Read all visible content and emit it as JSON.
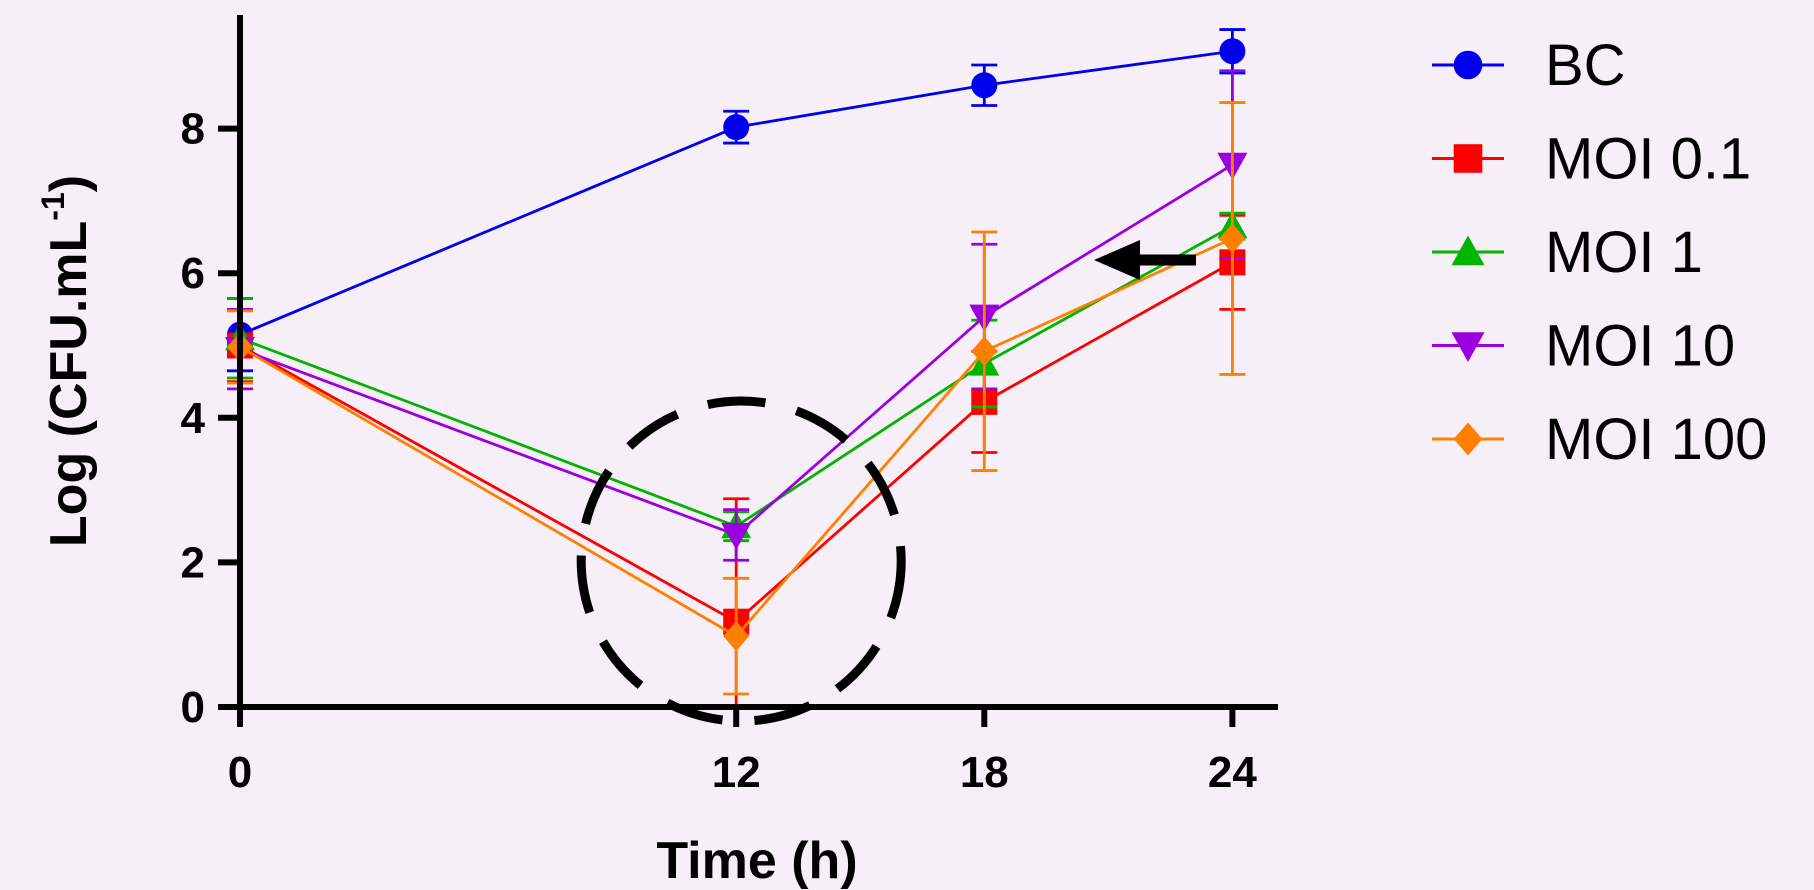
{
  "chart_data": {
    "type": "line",
    "xlabel": "Time (h)",
    "ylabel": {
      "main": "Log (CFU.mL",
      "superscript": "-1",
      "close": ")"
    },
    "x_ticks": [
      "0",
      "12",
      "18",
      "24"
    ],
    "y_ticks": [
      "0",
      "2",
      "4",
      "6",
      "8"
    ],
    "xlim": [
      0,
      30
    ],
    "ylim": [
      0,
      9.8
    ],
    "grid": false,
    "legend_position": "right",
    "x": [
      0,
      12,
      18,
      24
    ],
    "series": [
      {
        "name": "BC",
        "color": "#0000ee",
        "marker": "circle",
        "values": [
          5.15,
          8.02,
          8.6,
          9.07
        ],
        "errors": [
          0.5,
          0.22,
          0.28,
          0.3
        ]
      },
      {
        "name": "MOI 0.1",
        "color": "#ff0000",
        "marker": "square",
        "values": [
          5.0,
          1.18,
          4.22,
          6.15
        ],
        "errors": [
          0.5,
          1.7,
          0.7,
          0.65
        ]
      },
      {
        "name": "MOI 1",
        "color": "#00b400",
        "marker": "triangle-up",
        "values": [
          5.1,
          2.5,
          4.75,
          6.65
        ],
        "errors": [
          0.55,
          0.2,
          0.6,
          0.18
        ]
      },
      {
        "name": "MOI 10",
        "color": "#9900dd",
        "marker": "triangle-down",
        "values": [
          4.95,
          2.38,
          5.4,
          7.5
        ],
        "errors": [
          0.55,
          0.35,
          1.0,
          1.3
        ]
      },
      {
        "name": "MOI 100",
        "color": "#ff8000",
        "marker": "diamond",
        "values": [
          4.98,
          0.98,
          4.92,
          6.48
        ],
        "errors": [
          0.5,
          0.8,
          1.65,
          1.88
        ]
      }
    ],
    "annotations": [
      {
        "type": "dashed-circle",
        "center_x": 12,
        "center_y": 1.95
      },
      {
        "type": "arrow",
        "points_to_series": "MOI 0.1",
        "at_x": 24
      }
    ]
  }
}
